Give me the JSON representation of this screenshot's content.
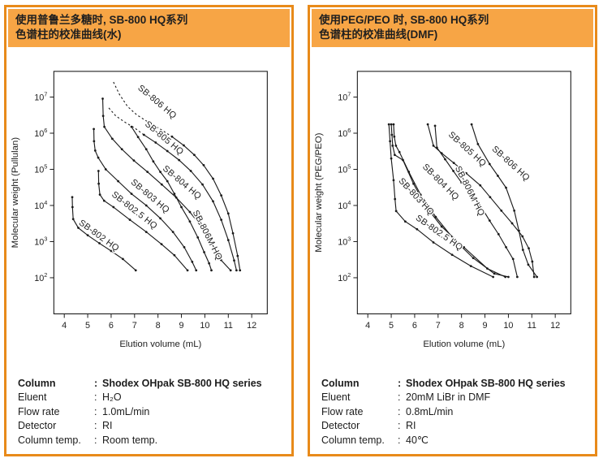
{
  "colors": {
    "panel_border": "#E88A1A",
    "title_bg": "#F7A545",
    "curve": "#1a1a1a",
    "text": "#1f1f1f"
  },
  "panels": [
    {
      "id": "water",
      "title_line1": "使用普鲁兰多糖时, SB-800 HQ系列",
      "title_line2": "色谱柱的校准曲线(水)",
      "specs": {
        "separator": ":",
        "rows": [
          {
            "label": "Column",
            "value": "Shodex OHpak SB-800 HQ series",
            "bold": true
          },
          {
            "label": "Eluent",
            "value": "H₂O",
            "bold": false
          },
          {
            "label": "Flow rate",
            "value": "1.0mL/min",
            "bold": false
          },
          {
            "label": "Detector",
            "value": "RI",
            "bold": false
          },
          {
            "label": "Column temp.",
            "value": "Room temp.",
            "bold": false
          }
        ]
      }
    },
    {
      "id": "dmf",
      "title_line1": "使用PEG/PEO 时, SB-800 HQ系列",
      "title_line2": "色谱柱的校准曲线(DMF)",
      "specs": {
        "separator": ":",
        "rows": [
          {
            "label": "Column",
            "value": "Shodex OHpak SB-800 HQ series",
            "bold": true
          },
          {
            "label": "Eluent",
            "value": "20mM LiBr in DMF",
            "bold": false
          },
          {
            "label": "Flow rate",
            "value": "0.8mL/min",
            "bold": false
          },
          {
            "label": "Detector",
            "value": "RI",
            "bold": false
          },
          {
            "label": "Column temp.",
            "value": "40℃",
            "bold": false
          }
        ]
      }
    }
  ],
  "chart_data": [
    {
      "type": "line",
      "xlabel": "Elution volume (mL)",
      "ylabel": "Molecular weight (Pullulan)",
      "x_ticks": [
        4,
        5,
        6,
        7,
        8,
        9,
        10,
        11,
        12
      ],
      "y_tick_exponents": [
        2,
        3,
        4,
        5,
        6,
        7
      ],
      "y_axis_style": "log",
      "grid": false,
      "legend": "labels-along-curves",
      "series": [
        {
          "name": "SB-806 HQ",
          "dashed_points": [
            [
              6.1,
              26000000.0
            ],
            [
              6.35,
              12000000.0
            ],
            [
              6.7,
              5500000.0
            ],
            [
              7.1,
              3200000.0
            ],
            [
              7.6,
              2000000.0
            ],
            [
              8.1,
              1300000.0
            ]
          ],
          "points": [
            [
              8.6,
              800000.0
            ],
            [
              9.1,
              460000.0
            ],
            [
              9.55,
              250000.0
            ],
            [
              9.95,
              130000.0
            ],
            [
              10.35,
              55000.0
            ],
            [
              10.7,
              19000.0
            ],
            [
              11.0,
              6000.0
            ],
            [
              11.2,
              1700.0
            ],
            [
              11.4,
              400.0
            ],
            [
              11.5,
              160.0
            ]
          ],
          "label": {
            "x": 7.12,
            "mw": 17000000.0,
            "angle": 40
          }
        },
        {
          "name": "SB-805 HQ",
          "dashed_points": [
            [
              5.9,
              5000000.0
            ],
            [
              6.2,
              3000000.0
            ],
            [
              6.6,
              2000000.0
            ],
            [
              7.0,
              1400000.0
            ]
          ],
          "points": [
            [
              7.4,
              900000.0
            ],
            [
              7.9,
              550000.0
            ],
            [
              8.4,
              320000.0
            ],
            [
              8.9,
              180000.0
            ],
            [
              9.4,
              90000.0
            ],
            [
              9.9,
              38000.0
            ],
            [
              10.35,
              13000.0
            ],
            [
              10.7,
              4000.0
            ],
            [
              11.0,
              1100.0
            ],
            [
              11.25,
              300.0
            ],
            [
              11.35,
              160.0
            ]
          ],
          "label": {
            "x": 7.42,
            "mw": 1700000.0,
            "angle": 40
          }
        },
        {
          "name": "SB-804 HQ",
          "points": [
            [
              5.64,
              9000000.0
            ],
            [
              5.66,
              3000000.0
            ],
            [
              5.71,
              1500000.0
            ],
            [
              6.05,
              700000.0
            ],
            [
              6.46,
              360000.0
            ],
            [
              6.97,
              175000.0
            ],
            [
              7.55,
              85000.0
            ],
            [
              8.16,
              38000.0
            ],
            [
              8.78,
              16500.0
            ],
            [
              9.36,
              6600.0
            ],
            [
              9.87,
              2500.0
            ],
            [
              10.31,
              850.0
            ],
            [
              10.69,
              310.0
            ],
            [
              11.1,
              160.0
            ]
          ],
          "label": {
            "x": 8.18,
            "mw": 100000.0,
            "angle": 40
          }
        },
        {
          "name": "SB-806M HQ",
          "points": [
            [
              6.87,
              1500000.0
            ],
            [
              7.15,
              780000.0
            ],
            [
              7.5,
              360000.0
            ],
            [
              7.8,
              165000.0
            ],
            [
              8.1,
              85000.0
            ],
            [
              8.4,
              47000.0
            ],
            [
              8.7,
              21000.0
            ],
            [
              9.0,
              9000.0
            ],
            [
              9.36,
              3600.0
            ],
            [
              9.7,
              1300.0
            ],
            [
              9.97,
              510.0
            ],
            [
              10.18,
              250.0
            ],
            [
              10.28,
              160.0
            ]
          ],
          "label": {
            "x": 9.48,
            "mw": 6600.0,
            "angle": 63
          }
        },
        {
          "name": "SB-803 HQ",
          "points": [
            [
              5.26,
              1300000.0
            ],
            [
              5.27,
              600000.0
            ],
            [
              5.32,
              330000.0
            ],
            [
              5.45,
              210000.0
            ],
            [
              5.77,
              100000.0
            ],
            [
              6.3,
              47000.0
            ],
            [
              6.87,
              21000.0
            ],
            [
              7.5,
              10000.0
            ],
            [
              8.1,
              4400.0
            ],
            [
              8.64,
              1850.0
            ],
            [
              9.12,
              700.0
            ],
            [
              9.46,
              275.0
            ],
            [
              9.63,
              160.0
            ]
          ],
          "label": {
            "x": 6.82,
            "mw": 42000.0,
            "angle": 40
          }
        },
        {
          "name": "SB-802.5 HQ",
          "points": [
            [
              5.46,
              90000.0
            ],
            [
              5.47,
              40000.0
            ],
            [
              5.52,
              20000.0
            ],
            [
              5.7,
              13500.0
            ],
            [
              6.1,
              9000.0
            ],
            [
              6.8,
              4000.0
            ],
            [
              7.5,
              1850.0
            ],
            [
              8.15,
              850.0
            ],
            [
              8.7,
              420.0
            ],
            [
              9.26,
              160.0
            ]
          ],
          "label": {
            "x": 6.0,
            "mw": 19000.0,
            "angle": 38
          }
        },
        {
          "name": "SB-802 HQ",
          "points": [
            [
              4.34,
              17000.0
            ],
            [
              4.35,
              9000.0
            ],
            [
              4.38,
              4200.0
            ],
            [
              4.6,
              2400.0
            ],
            [
              5.0,
              1500.0
            ],
            [
              5.5,
              900.0
            ],
            [
              6.0,
              550.0
            ],
            [
              6.5,
              330.0
            ],
            [
              7.05,
              160.0
            ]
          ],
          "label": {
            "x": 4.6,
            "mw": 3100.0,
            "angle": 36
          }
        }
      ]
    },
    {
      "type": "line",
      "xlabel": "Elution volume (mL)",
      "ylabel": "Molecular weight (PEG/PEO)",
      "x_ticks": [
        4,
        5,
        6,
        7,
        8,
        9,
        10,
        11,
        12
      ],
      "y_tick_exponents": [
        2,
        3,
        4,
        5,
        6,
        7
      ],
      "y_axis_style": "log",
      "grid": false,
      "legend": "labels-along-curves",
      "series": [
        {
          "name": "SB-806 HQ",
          "points": [
            [
              8.43,
              1750000.0
            ],
            [
              8.7,
              500000.0
            ],
            [
              9.2,
              140000.0
            ],
            [
              9.55,
              66000.0
            ],
            [
              9.9,
              31000.0
            ],
            [
              10.25,
              7200.0
            ],
            [
              10.45,
              2000.0
            ],
            [
              10.62,
              590.0
            ],
            [
              10.85,
              230.0
            ],
            [
              11.22,
              105.0
            ]
          ],
          "label": {
            "x": 9.28,
            "mw": 350000.0,
            "angle": 42
          }
        },
        {
          "name": "SB-805 HQ",
          "points": [
            [
              6.56,
              1750000.0
            ],
            [
              6.8,
              450000.0
            ],
            [
              7.15,
              280000.0
            ],
            [
              7.67,
              150000.0
            ],
            [
              8.2,
              78000.0
            ],
            [
              8.8,
              36000.0
            ],
            [
              9.22,
              17000.0
            ],
            [
              9.7,
              7200.0
            ],
            [
              10.16,
              3200.0
            ],
            [
              10.6,
              1400.0
            ],
            [
              10.87,
              650.0
            ],
            [
              11.02,
              280.0
            ],
            [
              11.1,
              105.0
            ]
          ],
          "label": {
            "x": 7.42,
            "mw": 870000.0,
            "angle": 42
          }
        },
        {
          "name": "SB-806M HQ",
          "points": [
            [
              6.87,
              1600000.0
            ],
            [
              6.95,
              400000.0
            ],
            [
              7.3,
              190000.0
            ],
            [
              7.65,
              90000.0
            ],
            [
              8.0,
              43000.0
            ],
            [
              8.45,
              20000.0
            ],
            [
              8.85,
              9000.0
            ],
            [
              9.2,
              3800.0
            ],
            [
              9.58,
              1600.0
            ],
            [
              9.9,
              700.0
            ],
            [
              10.2,
              330.0
            ],
            [
              10.38,
              105.0
            ]
          ],
          "label": {
            "x": 7.72,
            "mw": 110000.0,
            "angle": 63
          }
        },
        {
          "name": "SB-804 HQ",
          "points": [
            [
              5.1,
              1750000.0
            ],
            [
              5.13,
              800000.0
            ],
            [
              5.2,
              450000.0
            ],
            [
              5.35,
              300000.0
            ],
            [
              5.75,
              85000.0
            ],
            [
              6.25,
              20000.0
            ],
            [
              6.9,
              4800.0
            ],
            [
              7.65,
              1200.0
            ],
            [
              8.5,
              350.0
            ],
            [
              9.4,
              130.0
            ],
            [
              10.0,
              105.0
            ]
          ],
          "label": {
            "x": 6.32,
            "mw": 115000.0,
            "angle": 45
          }
        },
        {
          "name": "SB-803 HQ",
          "points": [
            [
              5.0,
              1750000.0
            ],
            [
              5.03,
              900000.0
            ],
            [
              5.06,
              450000.0
            ],
            [
              5.15,
              250000.0
            ],
            [
              5.5,
              180000.0
            ],
            [
              5.95,
              40000.0
            ],
            [
              6.45,
              10000.0
            ],
            [
              7.15,
              2600.0
            ],
            [
              8.1,
              700.0
            ],
            [
              9.1,
              180.0
            ],
            [
              9.87,
              105.0
            ]
          ],
          "label": {
            "x": 5.3,
            "mw": 47000.0,
            "angle": 47
          }
        },
        {
          "name": "SB-802.5 HQ",
          "points": [
            [
              4.9,
              1750000.0
            ],
            [
              4.95,
              600000.0
            ],
            [
              5.0,
              200000.0
            ],
            [
              5.1,
              50000.0
            ],
            [
              5.16,
              15000.0
            ],
            [
              5.21,
              7000.0
            ],
            [
              5.6,
              3600.0
            ],
            [
              6.1,
              2200.0
            ],
            [
              6.8,
              950.0
            ],
            [
              7.6,
              430.0
            ],
            [
              8.4,
              210.0
            ],
            [
              9.35,
              105.0
            ]
          ],
          "label": {
            "x": 6.02,
            "mw": 4200.0,
            "angle": 35
          }
        }
      ]
    }
  ]
}
